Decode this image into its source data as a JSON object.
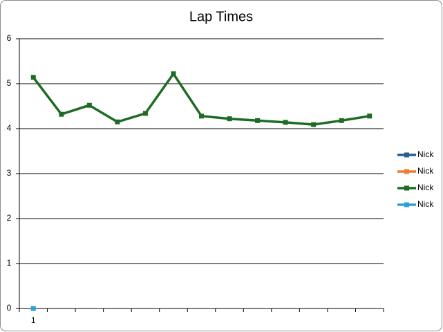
{
  "chart_data": {
    "type": "line",
    "title": "Lap Times",
    "categories": [
      "1",
      null,
      null,
      null,
      null,
      null,
      null,
      null,
      null,
      null,
      null,
      null,
      null
    ],
    "series": [
      {
        "name": "Nick",
        "color": "#255e91",
        "values": [
          null,
          null,
          null,
          null,
          null,
          null,
          null,
          null,
          null,
          null,
          null,
          null,
          null
        ]
      },
      {
        "name": "Nick",
        "color": "#ed7d31",
        "values": [
          null,
          null,
          null,
          null,
          null,
          null,
          null,
          null,
          null,
          null,
          null,
          null,
          null
        ]
      },
      {
        "name": "Nick",
        "color": "#1e6b24",
        "values": [
          5.14,
          4.32,
          4.52,
          4.15,
          4.34,
          5.22,
          4.28,
          4.22,
          4.18,
          4.14,
          4.09,
          4.18,
          4.28
        ]
      },
      {
        "name": "Nick",
        "color": "#2e9fd8",
        "values": [
          0,
          null,
          null,
          null,
          null,
          null,
          null,
          null,
          null,
          null,
          null,
          null,
          null
        ]
      }
    ],
    "ylim": [
      0,
      6
    ],
    "yticks": [
      0,
      1,
      2,
      3,
      4,
      5,
      6
    ],
    "grid": true,
    "legend": "right"
  }
}
